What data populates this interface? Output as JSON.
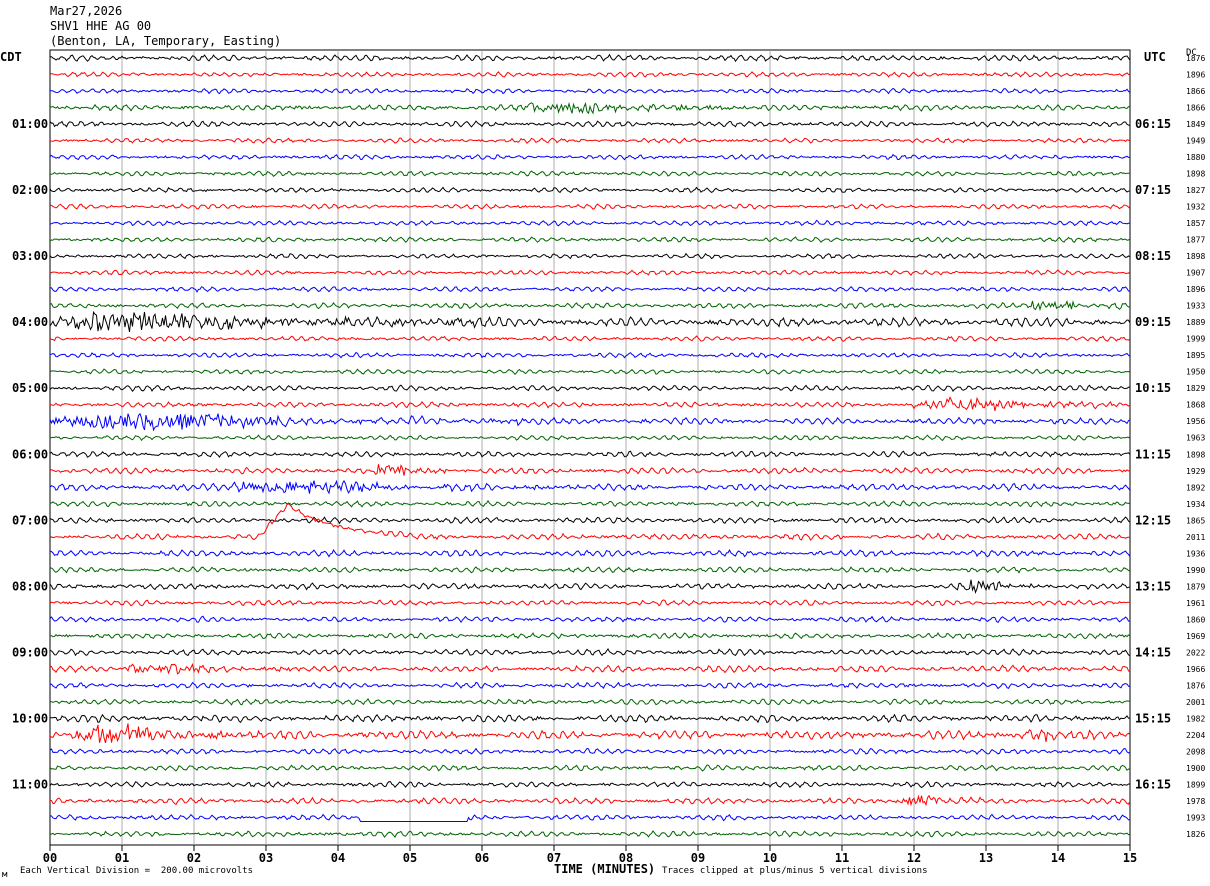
{
  "header": {
    "date": "Mar27,2026",
    "station": "SHV1 HHE AG 00",
    "location": "(Benton, LA, Temporary, Easting)"
  },
  "left_timezone": "CDT",
  "right_timezone": "UTC",
  "right_column_label": "DC",
  "footer": {
    "scale_note": "Each Vertical Division =  200.00 microvolts",
    "clip_note": "Traces clipped at plus/minus 5 vertical divisions",
    "corner_mark": "м"
  },
  "chart_data": {
    "type": "helicorder",
    "title": "",
    "xlabel": "TIME (MINUTES)",
    "xlim": [
      0,
      15
    ],
    "x_ticks": [
      "00",
      "01",
      "02",
      "03",
      "04",
      "05",
      "06",
      "07",
      "08",
      "09",
      "10",
      "11",
      "12",
      "13",
      "14",
      "15"
    ],
    "minutes_per_line": 15,
    "line_count": 48,
    "trace_color_cycle": [
      "#000000",
      "#ff0000",
      "#0000ff",
      "#006400"
    ],
    "left_hour_labels": [
      "01:00",
      "02:00",
      "03:00",
      "04:00",
      "05:00",
      "06:00",
      "07:00",
      "08:00",
      "09:00",
      "10:00",
      "11:00"
    ],
    "left_hour_label_lines": [
      4,
      8,
      12,
      16,
      20,
      24,
      28,
      32,
      36,
      40,
      44
    ],
    "right_time_labels": [
      "06:15",
      "07:15",
      "08:15",
      "09:15",
      "10:15",
      "11:15",
      "12:15",
      "13:15",
      "14:15",
      "15:15",
      "16:15"
    ],
    "right_time_label_lines": [
      4,
      8,
      12,
      16,
      20,
      24,
      28,
      32,
      36,
      40,
      44
    ],
    "dc_offsets": [
      1876,
      1896,
      1866,
      1866,
      1849,
      1949,
      1880,
      1898,
      1827,
      1932,
      1857,
      1877,
      1898,
      1907,
      1896,
      1933,
      1889,
      1999,
      1895,
      1950,
      1829,
      1868,
      1956,
      1963,
      1898,
      1929,
      1892,
      1934,
      1865,
      2011,
      1936,
      1990,
      1879,
      1961,
      1860,
      1969,
      2022,
      1966,
      1876,
      2001,
      1982,
      2204,
      2098,
      1900,
      1899,
      1978,
      1993,
      1826
    ],
    "amplitudes": [
      0.9,
      0.7,
      0.7,
      0.9,
      0.8,
      0.7,
      0.7,
      0.7,
      0.7,
      0.7,
      0.7,
      0.7,
      0.7,
      0.7,
      0.7,
      0.8,
      1.4,
      0.7,
      0.7,
      0.7,
      0.8,
      0.8,
      1.0,
      0.7,
      0.8,
      0.9,
      1.0,
      0.8,
      0.9,
      0.9,
      0.9,
      0.8,
      0.9,
      0.8,
      0.8,
      0.8,
      0.9,
      1.0,
      0.8,
      0.8,
      1.1,
      1.3,
      0.8,
      0.8,
      0.8,
      0.9,
      0.8,
      0.8
    ],
    "events": [
      {
        "line": 3,
        "start_min": 6.5,
        "end_min": 9.5,
        "amp": 1.8
      },
      {
        "line": 15,
        "start_min": 13.5,
        "end_min": 15.0,
        "amp": 1.6
      },
      {
        "line": 16,
        "start_min": 0.0,
        "end_min": 6.0,
        "amp": 2.6
      },
      {
        "line": 21,
        "start_min": 12.0,
        "end_min": 15.0,
        "amp": 1.8
      },
      {
        "line": 22,
        "start_min": 0.0,
        "end_min": 6.5,
        "amp": 2.2
      },
      {
        "line": 25,
        "start_min": 4.5,
        "end_min": 5.5,
        "amp": 1.8
      },
      {
        "line": 26,
        "start_min": 2.5,
        "end_min": 7.0,
        "amp": 1.8
      },
      {
        "line": 32,
        "start_min": 12.6,
        "end_min": 14.0,
        "amp": 1.5
      },
      {
        "line": 37,
        "start_min": 1.0,
        "end_min": 3.5,
        "amp": 1.5
      },
      {
        "line": 41,
        "start_min": 0.3,
        "end_min": 2.5,
        "amp": 3.0
      },
      {
        "line": 41,
        "start_min": 13.5,
        "end_min": 14.5,
        "amp": 1.6
      },
      {
        "line": 45,
        "start_min": 11.8,
        "end_min": 13.0,
        "amp": 1.7
      }
    ],
    "offset_step": {
      "line": 29,
      "start_min": 2.9,
      "peak_min": 3.3,
      "end_min": 5.0,
      "amp": 2.9
    },
    "flat_gap": {
      "line": 46,
      "start_min": 4.3,
      "end_min": 5.8
    }
  }
}
